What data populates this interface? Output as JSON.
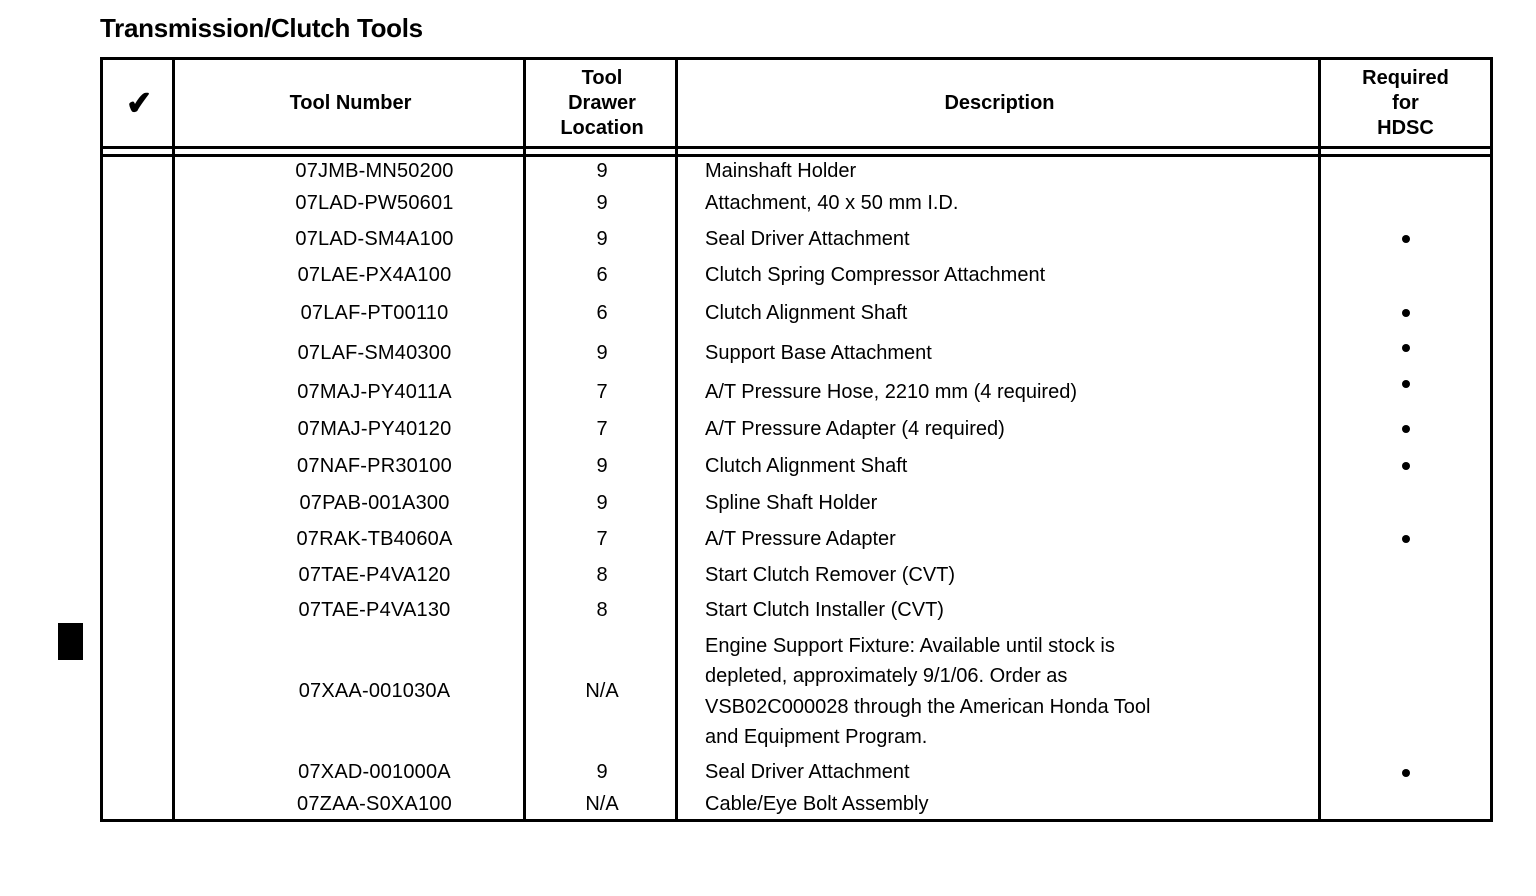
{
  "page_title": "Transmission/Clutch Tools",
  "colors": {
    "text": "#000000",
    "background": "#ffffff",
    "rule": "#000000"
  },
  "margin_marker": "black-square-revision-marker",
  "table": {
    "headers": {
      "check": "✔",
      "tool_number": "Tool Number",
      "drawer_location": [
        "Tool",
        "Drawer",
        "Location"
      ],
      "description": "Description",
      "hdsc": [
        "Required",
        "for",
        "HDSC"
      ]
    },
    "hdsc_marker": "•",
    "rows": [
      {
        "tool_number": "07JMB-MN50200",
        "drawer": "9",
        "description": "Mainshaft Holder",
        "hdsc": false
      },
      {
        "tool_number": "07LAD-PW50601",
        "drawer": "9",
        "description": "Attachment, 40 x 50 mm I.D.",
        "hdsc": false
      },
      {
        "tool_number": "07LAD-SM4A100",
        "drawer": "9",
        "description": "Seal Driver Attachment",
        "hdsc": true
      },
      {
        "tool_number": "07LAE-PX4A100",
        "drawer": "6",
        "description": "Clutch Spring Compressor Attachment",
        "hdsc": false
      },
      {
        "tool_number": "07LAF-PT00110",
        "drawer": "6",
        "description": "Clutch Alignment Shaft",
        "hdsc": true
      },
      {
        "tool_number": "07LAF-SM40300",
        "drawer": "9",
        "description": "Support Base Attachment",
        "hdsc": true
      },
      {
        "tool_number": "07MAJ-PY4011A",
        "drawer": "7",
        "description": "A/T Pressure Hose, 2210 mm (4 required)",
        "hdsc": true
      },
      {
        "tool_number": "07MAJ-PY40120",
        "drawer": "7",
        "description": "A/T Pressure Adapter (4 required)",
        "hdsc": true
      },
      {
        "tool_number": "07NAF-PR30100",
        "drawer": "9",
        "description": "Clutch Alignment Shaft",
        "hdsc": true
      },
      {
        "tool_number": "07PAB-001A300",
        "drawer": "9",
        "description": "Spline Shaft Holder",
        "hdsc": false
      },
      {
        "tool_number": "07RAK-TB4060A",
        "drawer": "7",
        "description": "A/T Pressure Adapter",
        "hdsc": true
      },
      {
        "tool_number": "07TAE-P4VA120",
        "drawer": "8",
        "description": "Start Clutch Remover (CVT)",
        "hdsc": false
      },
      {
        "tool_number": "07TAE-P4VA130",
        "drawer": "8",
        "description": "Start Clutch Installer (CVT)",
        "hdsc": false
      },
      {
        "tool_number": "07XAA-001030A",
        "drawer": "N/A",
        "description": "Engine Support Fixture: Available until stock is depleted, approximately 9/1/06. Order as VSB02C000028 through the American Honda Tool and Equipment Program.",
        "hdsc": false
      },
      {
        "tool_number": "07XAD-001000A",
        "drawer": "9",
        "description": "Seal Driver Attachment",
        "hdsc": true
      },
      {
        "tool_number": "07ZAA-S0XA100",
        "drawer": "N/A",
        "description": "Cable/Eye Bolt Assembly",
        "hdsc": false
      }
    ]
  }
}
